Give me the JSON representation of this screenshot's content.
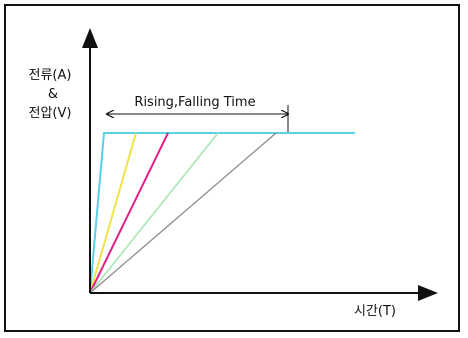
{
  "diagram": {
    "y_axis_label_lines": [
      "전류(A)",
      "&",
      "전압(V)"
    ],
    "x_axis_label": "시간(T)",
    "annotation": "Rising,Falling  Time",
    "colors": {
      "frame": "#111111",
      "axis": "#111111",
      "cyan": "#5ad0e6",
      "yellow": "#f0e24a",
      "magenta": "#e0208a",
      "light_green": "#a8e6b4",
      "gray": "#8a8a8a"
    },
    "lines": [
      {
        "name": "cyan",
        "color_key": "cyan"
      },
      {
        "name": "yellow",
        "color_key": "yellow"
      },
      {
        "name": "magenta",
        "color_key": "magenta"
      },
      {
        "name": "light-green",
        "color_key": "light_green"
      },
      {
        "name": "gray",
        "color_key": "gray"
      }
    ]
  }
}
